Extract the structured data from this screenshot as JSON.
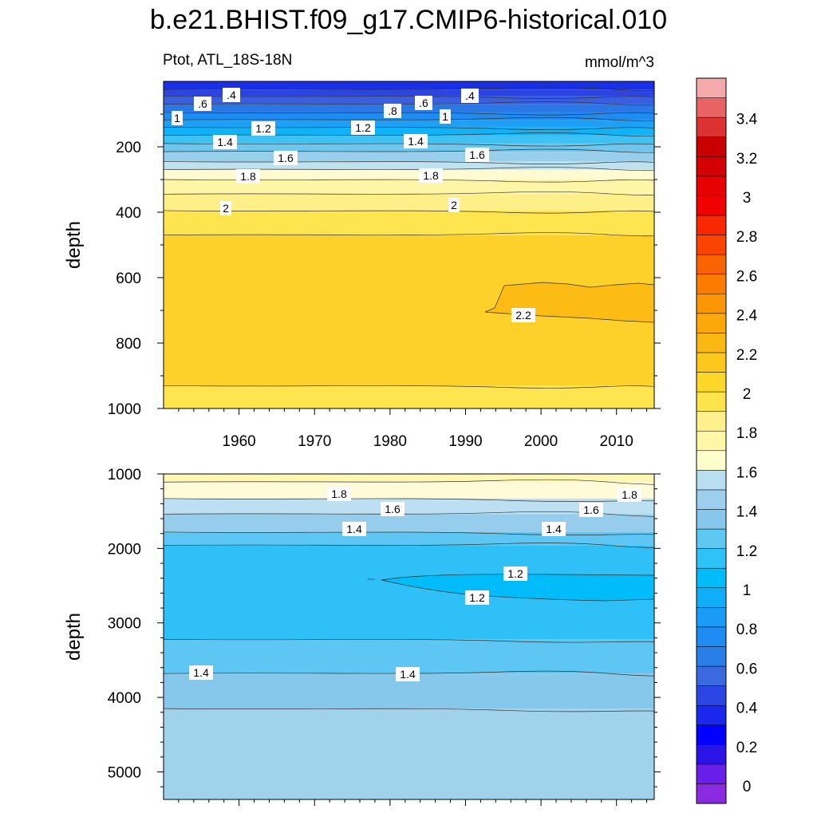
{
  "chart_data": {
    "type": "contour",
    "title": "b.e21.BHIST.f09_g17.CMIP6-historical.010",
    "variable": "Ptot, ATL_18S-18N",
    "units": "mmol/m^3",
    "colorbar": {
      "levels": [
        0,
        0.2,
        0.4,
        0.6,
        0.8,
        1,
        1.2,
        1.4,
        1.6,
        1.8,
        2,
        2.2,
        2.4,
        2.6,
        2.8,
        3,
        3.2,
        3.4
      ],
      "tick_labels": [
        "0",
        "0.2",
        "0.4",
        "0.6",
        "0.8",
        "1",
        "1.2",
        "1.4",
        "1.6",
        "1.8",
        "2",
        "2.2",
        "2.4",
        "2.6",
        "2.8",
        "3",
        "3.2",
        "3.4"
      ],
      "colors": [
        "#8a2be2",
        "#6a1eea",
        "#2a14e6",
        "#0000ff",
        "#1a28ee",
        "#2c46e6",
        "#3a6ae0",
        "#2a7ee8",
        "#1e8cf2",
        "#1a9cf6",
        "#10aef8",
        "#00bcfa",
        "#2ec2f6",
        "#5ec8f0",
        "#86c8ec",
        "#9ccfec",
        "#b8def0",
        "#ffffcc",
        "#fff6a8",
        "#fff08c",
        "#fee44c",
        "#fdd828",
        "#fdc81c",
        "#fcb812",
        "#fca80a",
        "#fc9604",
        "#fc7c00",
        "#fb6200",
        "#fa4400",
        "#f82800",
        "#f00000",
        "#e60000",
        "#d40000",
        "#c80000",
        "#dc3232",
        "#e86464",
        "#f4aaaa"
      ]
    },
    "panels": [
      {
        "name": "upper",
        "ylabel": "depth",
        "ylim": [
          0,
          1000
        ],
        "yticks": [
          200,
          400,
          600,
          800,
          1000
        ],
        "xlim": [
          1950,
          2015
        ],
        "xticks": [
          1960,
          1970,
          1980,
          1990,
          2000,
          2010
        ],
        "contour_labels": [
          ".4",
          ".6",
          "1",
          ".8",
          ".6",
          ".4",
          "1",
          "1.2",
          "1.2",
          "1.4",
          "1.4",
          "1.6",
          "1.6",
          "1.8",
          "1.8",
          "2",
          "2",
          "2.2"
        ]
      },
      {
        "name": "lower",
        "ylabel": "depth",
        "ylim": [
          1000,
          5500
        ],
        "yticks": [
          1000,
          2000,
          3000,
          4000,
          5000
        ],
        "xlim": [
          1950,
          2015
        ],
        "contour_labels": [
          "1.8",
          "1.8",
          "1.6",
          "1.6",
          "1.4",
          "1.4",
          "1.2",
          "1.2",
          "1.4",
          "1.4"
        ]
      }
    ]
  }
}
